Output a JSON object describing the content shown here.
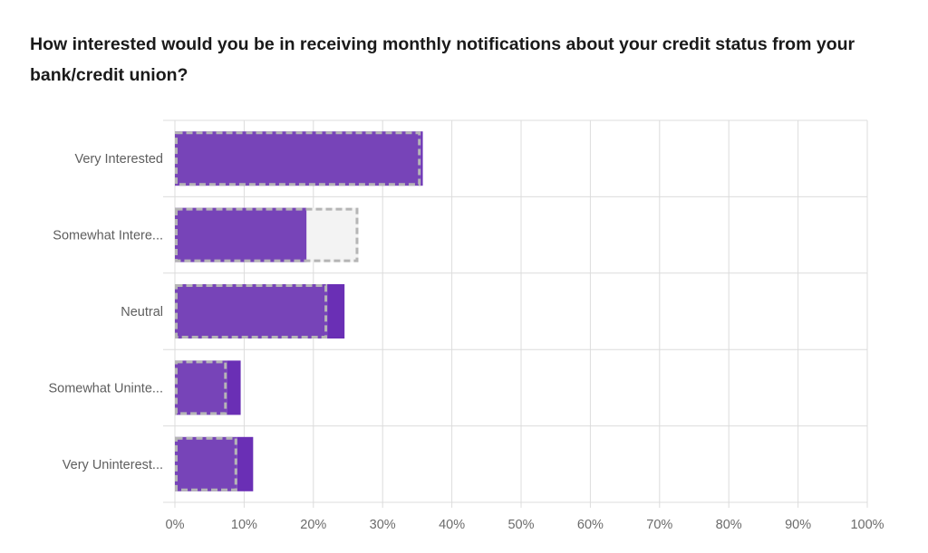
{
  "question": {
    "title": "How interested would you be in receiving monthly notifications about your credit status from your bank/credit union?"
  },
  "colors": {
    "bar": "#7744b8",
    "bar_overflow": "#6a2fb5",
    "benchmark_border": "#b5b5b5",
    "benchmark_fill": "#f3f3f3",
    "grid": "#dcdcdc"
  },
  "chart_data": {
    "type": "bar",
    "orientation": "horizontal",
    "categories": [
      "Very Interested",
      "Somewhat Intere...",
      "Neutral",
      "Somewhat Uninte...",
      "Very Uninterest..."
    ],
    "series": [
      {
        "values": [
          35.8,
          19,
          24.5,
          9.5,
          11.3
        ]
      },
      {
        "style": "dashed-outline",
        "values": [
          35.5,
          26.5,
          22,
          7.5,
          9
        ]
      }
    ],
    "x_ticks": [
      "0%",
      "10%",
      "20%",
      "30%",
      "40%",
      "50%",
      "60%",
      "70%",
      "80%",
      "90%",
      "100%"
    ],
    "xlim": [
      0,
      100
    ],
    "grid": true
  }
}
